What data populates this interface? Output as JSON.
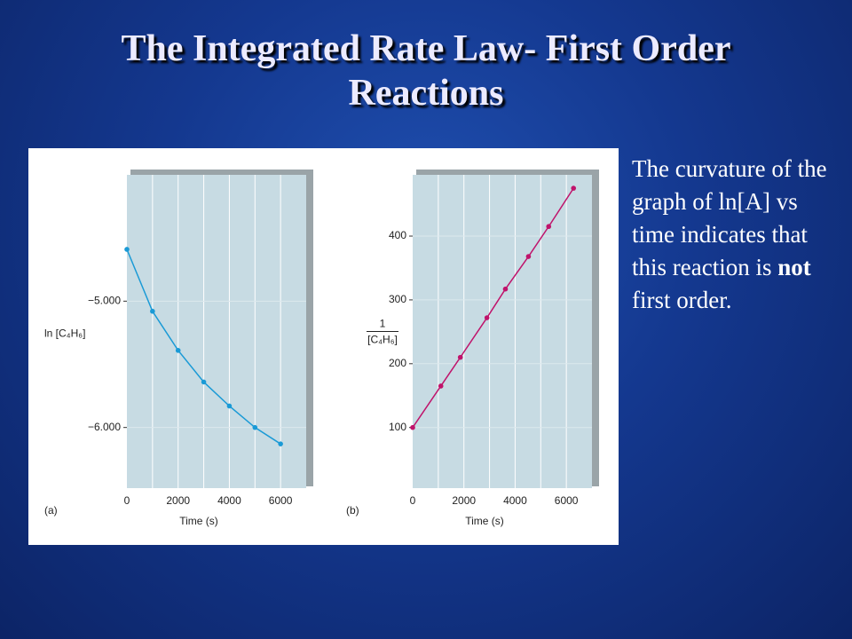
{
  "title": "The Integrated Rate Law- First Order Reactions",
  "body": [
    "The curvature of the graph of ln[A] vs time indicates that this reaction is ",
    "not",
    " first order."
  ],
  "chart_data": [
    {
      "type": "line",
      "panel_label": "(a)",
      "xlabel": "Time (s)",
      "ylabel": "ln [C₄H₆]",
      "x": [
        0,
        1000,
        2000,
        3000,
        4000,
        5000,
        6000
      ],
      "values": [
        -4.59,
        -5.08,
        -5.39,
        -5.64,
        -5.83,
        -6.0,
        -6.13
      ],
      "color": "#1a9ad6",
      "xlim": [
        0,
        7000
      ],
      "ylim": [
        -6.48,
        -4.0
      ],
      "xticks": [
        0,
        2000,
        4000,
        6000
      ],
      "yticks": [
        {
          "value": -5,
          "label": "−5.000"
        },
        {
          "value": -6,
          "label": "−6.000"
        }
      ],
      "xgrid": [
        1000,
        2000,
        3000,
        4000,
        5000,
        6000
      ]
    },
    {
      "type": "line",
      "panel_label": "(b)",
      "xlabel": "Time (s)",
      "ylabel_numerator": "1",
      "ylabel_denominator": "[C₄H₆]",
      "x": [
        0,
        1100,
        1860,
        2900,
        3620,
        4520,
        5310,
        6280
      ],
      "values": [
        100,
        165,
        210,
        272,
        317,
        368,
        415,
        475
      ],
      "color": "#c0136b",
      "xlim": [
        0,
        7000
      ],
      "ylim": [
        5,
        496
      ],
      "xticks": [
        0,
        2000,
        4000,
        6000
      ],
      "yticks": [
        100,
        200,
        300,
        400
      ],
      "xgrid": [
        1000,
        2000,
        3000,
        4000,
        5000,
        6000
      ]
    }
  ]
}
